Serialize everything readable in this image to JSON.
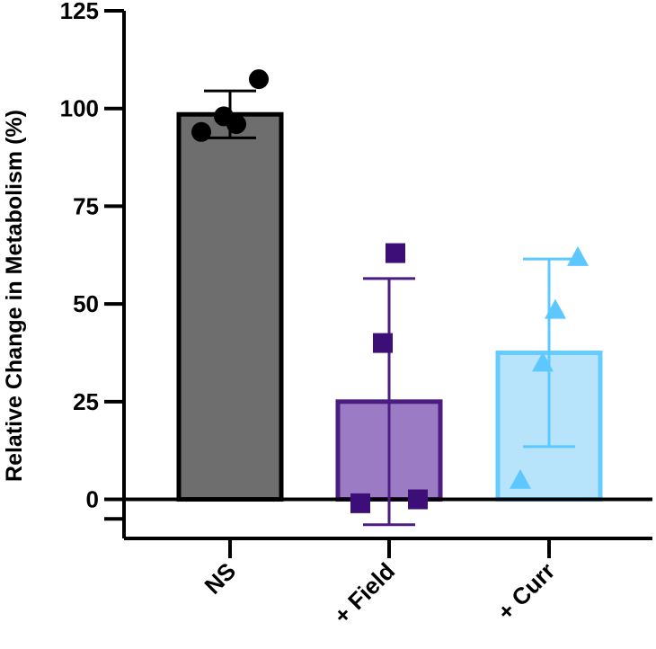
{
  "chart_data": {
    "type": "bar",
    "title": "",
    "xlabel": "",
    "ylabel": "Relative Change in Metabolism (%)",
    "ylim": [
      -10,
      125
    ],
    "yticks": [
      0,
      25,
      50,
      75,
      100,
      125
    ],
    "yticks_labels": [
      "0",
      "25",
      "50",
      "75",
      "100",
      "125"
    ],
    "grid": false,
    "categories": [
      "NS",
      "+ Field",
      "+ Curr"
    ],
    "means": [
      98.5,
      25,
      37.5
    ],
    "sd": [
      6,
      31.5,
      24
    ],
    "points": [
      [
        94,
        98,
        96,
        107.5
      ],
      [
        -1,
        40,
        63,
        0
      ],
      [
        5,
        35,
        48.5,
        62
      ]
    ],
    "markers": [
      "circle",
      "square",
      "triangle"
    ],
    "colors": {
      "bar_fill": [
        "#6e6e6e",
        "#9b7cc4",
        "#b8e4fb"
      ],
      "bar_edge": [
        "#000000",
        "#4b1c82",
        "#66ccff"
      ],
      "points": [
        "#000000",
        "#3d0e78",
        "#5cc8ff"
      ],
      "error_bars": [
        "#000000",
        "#4b1c82",
        "#5cc8ff"
      ]
    }
  }
}
